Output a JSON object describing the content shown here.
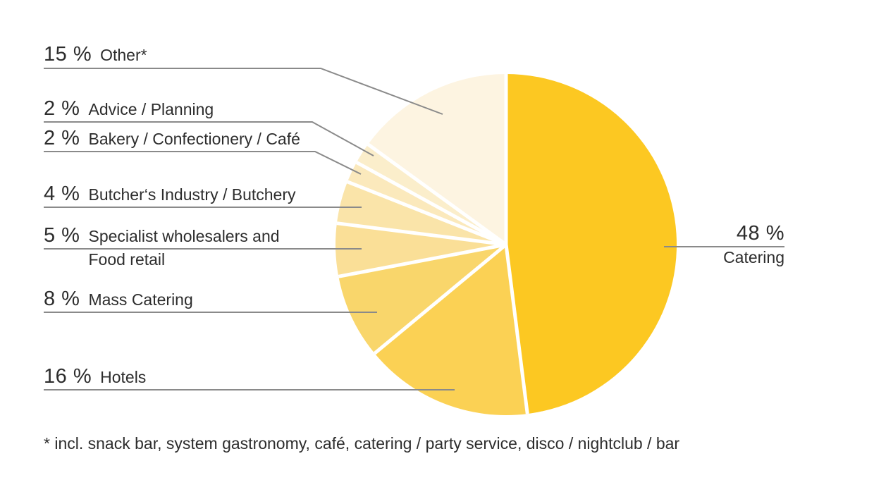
{
  "chart_data": {
    "type": "pie",
    "title": "",
    "unit": "%",
    "direction": "clockwise",
    "start_angle_deg": 0,
    "legend_position": "leader-line labels",
    "slices": [
      {
        "label": "Catering",
        "value": 48,
        "pct_text": "48 %",
        "color": "#FCC822"
      },
      {
        "label": "Hotels",
        "value": 16,
        "pct_text": "16 %",
        "color": "#FBD154"
      },
      {
        "label": "Mass Catering",
        "value": 8,
        "pct_text": "8 %",
        "color": "#F9D66B"
      },
      {
        "label": "Specialist wholesalers and Food retail",
        "value": 5,
        "pct_text": "5 %",
        "color": "#FADF97",
        "label_line1": "Specialist wholesalers and",
        "label_line2": "Food retail"
      },
      {
        "label": "Butcher‘s Industry / Butchery",
        "value": 4,
        "pct_text": "4 %",
        "color": "#FAE4A9"
      },
      {
        "label": "Bakery / Confectionery / Café",
        "value": 2,
        "pct_text": "2 %",
        "color": "#FBE9BC"
      },
      {
        "label": "Advice / Planning",
        "value": 2,
        "pct_text": "2 %",
        "color": "#FBEECB"
      },
      {
        "label": "Other*",
        "value": 15,
        "pct_text": "15 %",
        "color": "#FDF4E1"
      }
    ],
    "footnote": "* incl. snack bar, system gastronomy, café, catering / party service, disco / nightclub / bar"
  },
  "style": {
    "leader_line_color": "#8a8a8a",
    "text_color": "#2d2d2d",
    "separator_color": "#ffffff",
    "background": "#ffffff"
  }
}
